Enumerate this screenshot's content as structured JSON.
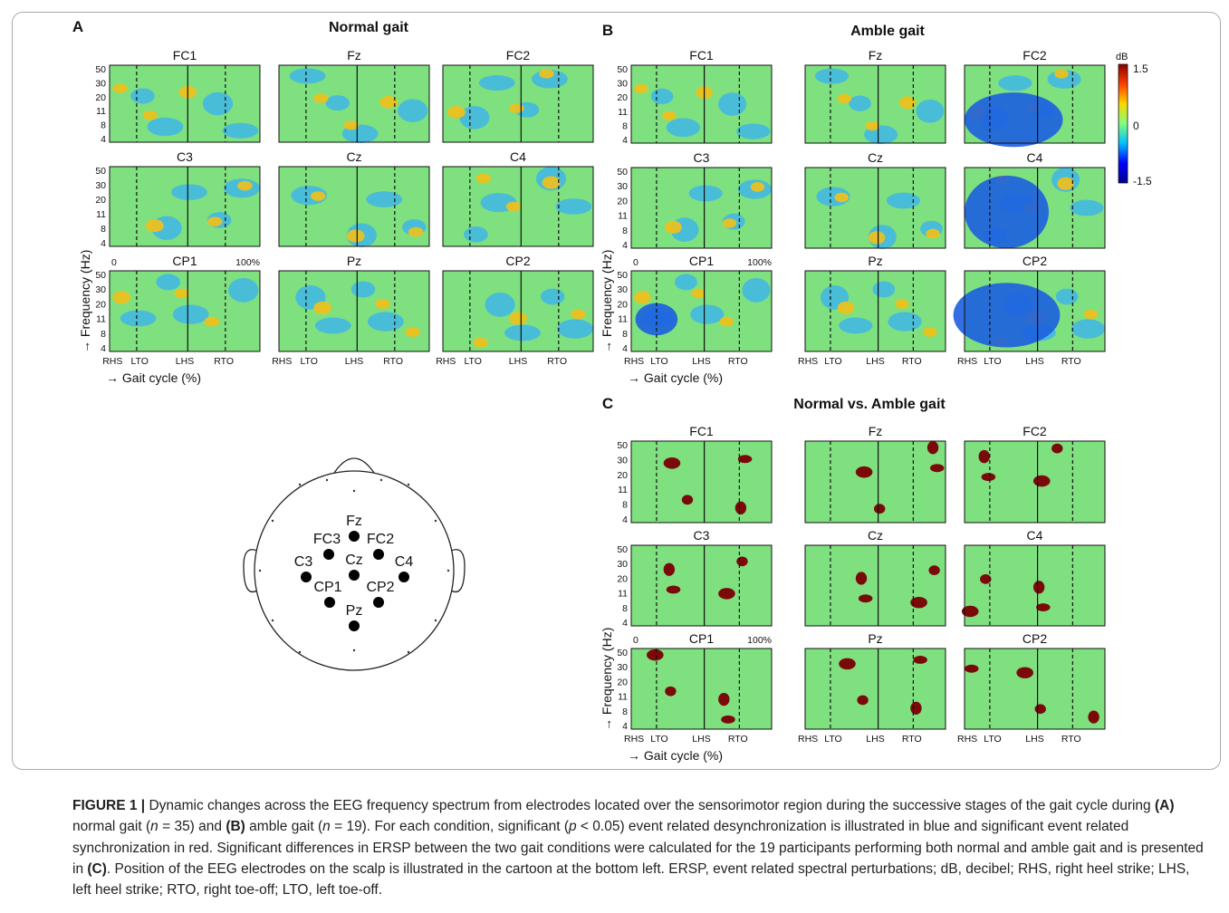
{
  "panels": [
    {
      "letter": "A",
      "title": "Normal gait",
      "electrodes": [
        "FC1",
        "Fz",
        "FC2",
        "C3",
        "Cz",
        "C4",
        "CP1",
        "Pz",
        "CP2"
      ]
    },
    {
      "letter": "B",
      "title": "Amble gait",
      "electrodes": [
        "FC1",
        "Fz",
        "FC2",
        "C3",
        "Cz",
        "C4",
        "CP1",
        "Pz",
        "CP2"
      ]
    },
    {
      "letter": "C",
      "title": "Normal vs. Amble gait",
      "electrodes": [
        "FC1",
        "Fz",
        "FC2",
        "C3",
        "Cz",
        "C4",
        "CP1",
        "Pz",
        "CP2"
      ]
    }
  ],
  "y_ticks": [
    "50",
    "30",
    "20",
    "11",
    "8",
    "4"
  ],
  "x_events": [
    "RHS",
    "LTO",
    "LHS",
    "RTO"
  ],
  "x_start": "0",
  "x_end": "100%",
  "y_axis_label": "→ Frequency (Hz)",
  "x_axis_label": "→ Gait cycle (%)",
  "colorbar": {
    "unit": "dB",
    "ticks": [
      "1.5",
      "0",
      "-1.5"
    ],
    "colors": [
      "#00008f",
      "#0000ff",
      "#00bfff",
      "#7fff7f",
      "#ffd700",
      "#ff4000",
      "#8b0000"
    ]
  },
  "heatmap_base_color": "#7fe07f",
  "significance_color": "#7a0a0a",
  "headmap": {
    "electrodes": [
      "Fz",
      "FC3",
      "FC2",
      "C3",
      "Cz",
      "C4",
      "CP1",
      "CP2",
      "Pz"
    ]
  },
  "caption": {
    "label": "FIGURE 1 |",
    "t1": " Dynamic changes across the EEG frequency spectrum from electrodes located over the sensorimotor region during the successive stages of the gait cycle during ",
    "a": "(A)",
    "t2": " normal gait (",
    "n1": "n",
    "t3": " = 35) and ",
    "b": "(B)",
    "t4": " amble gait (",
    "n2": "n",
    "t5": " = 19). For each condition, significant (",
    "p": "p",
    "t6": " < 0.05) event related desynchronization is illustrated in blue and significant event related synchronization in red. Significant differences in ERSP between the two gait conditions were calculated for the 19 participants performing both normal and amble gait and is presented in ",
    "c": "(C)",
    "t7": ". Position of the EEG electrodes on the scalp is illustrated in the cartoon at the bottom left. ERSP, event related spectral perturbations; dB, decibel; RHS, right heel strike; LHS, left heel strike; RTO, right toe-off; LTO, left toe-off."
  }
}
